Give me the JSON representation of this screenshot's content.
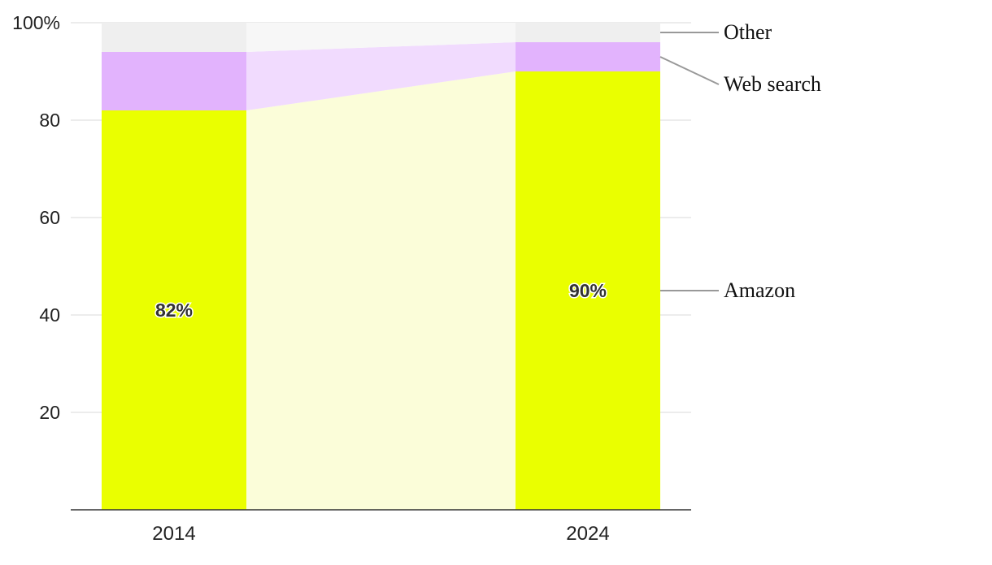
{
  "chart_data": {
    "type": "bar",
    "stacked": true,
    "percent_stacked": true,
    "categories": [
      "2014",
      "2024"
    ],
    "series": [
      {
        "name": "Amazon",
        "values": [
          82,
          90
        ],
        "color": "#eaff00",
        "band_color": "#fbfdd9",
        "data_labels": [
          "82%",
          "90%"
        ]
      },
      {
        "name": "Web search",
        "values": [
          12,
          6
        ],
        "color": "#e2b3fd",
        "band_color": "#f1dbfe"
      },
      {
        "name": "Other",
        "values": [
          6,
          4
        ],
        "color": "#efefef",
        "band_color": "#f7f7f7"
      }
    ],
    "y_ticks": [
      {
        "value": 20,
        "label": "20"
      },
      {
        "value": 40,
        "label": "40"
      },
      {
        "value": 60,
        "label": "60"
      },
      {
        "value": 80,
        "label": "80"
      },
      {
        "value": 100,
        "label": "100%"
      }
    ],
    "ylim": [
      0,
      100
    ],
    "grid": true,
    "legend": "right",
    "title": "",
    "xlabel": "",
    "ylabel": "",
    "colors": {
      "grid": "#e6e6e6",
      "axis": "#333333",
      "leader": "#999999"
    }
  }
}
